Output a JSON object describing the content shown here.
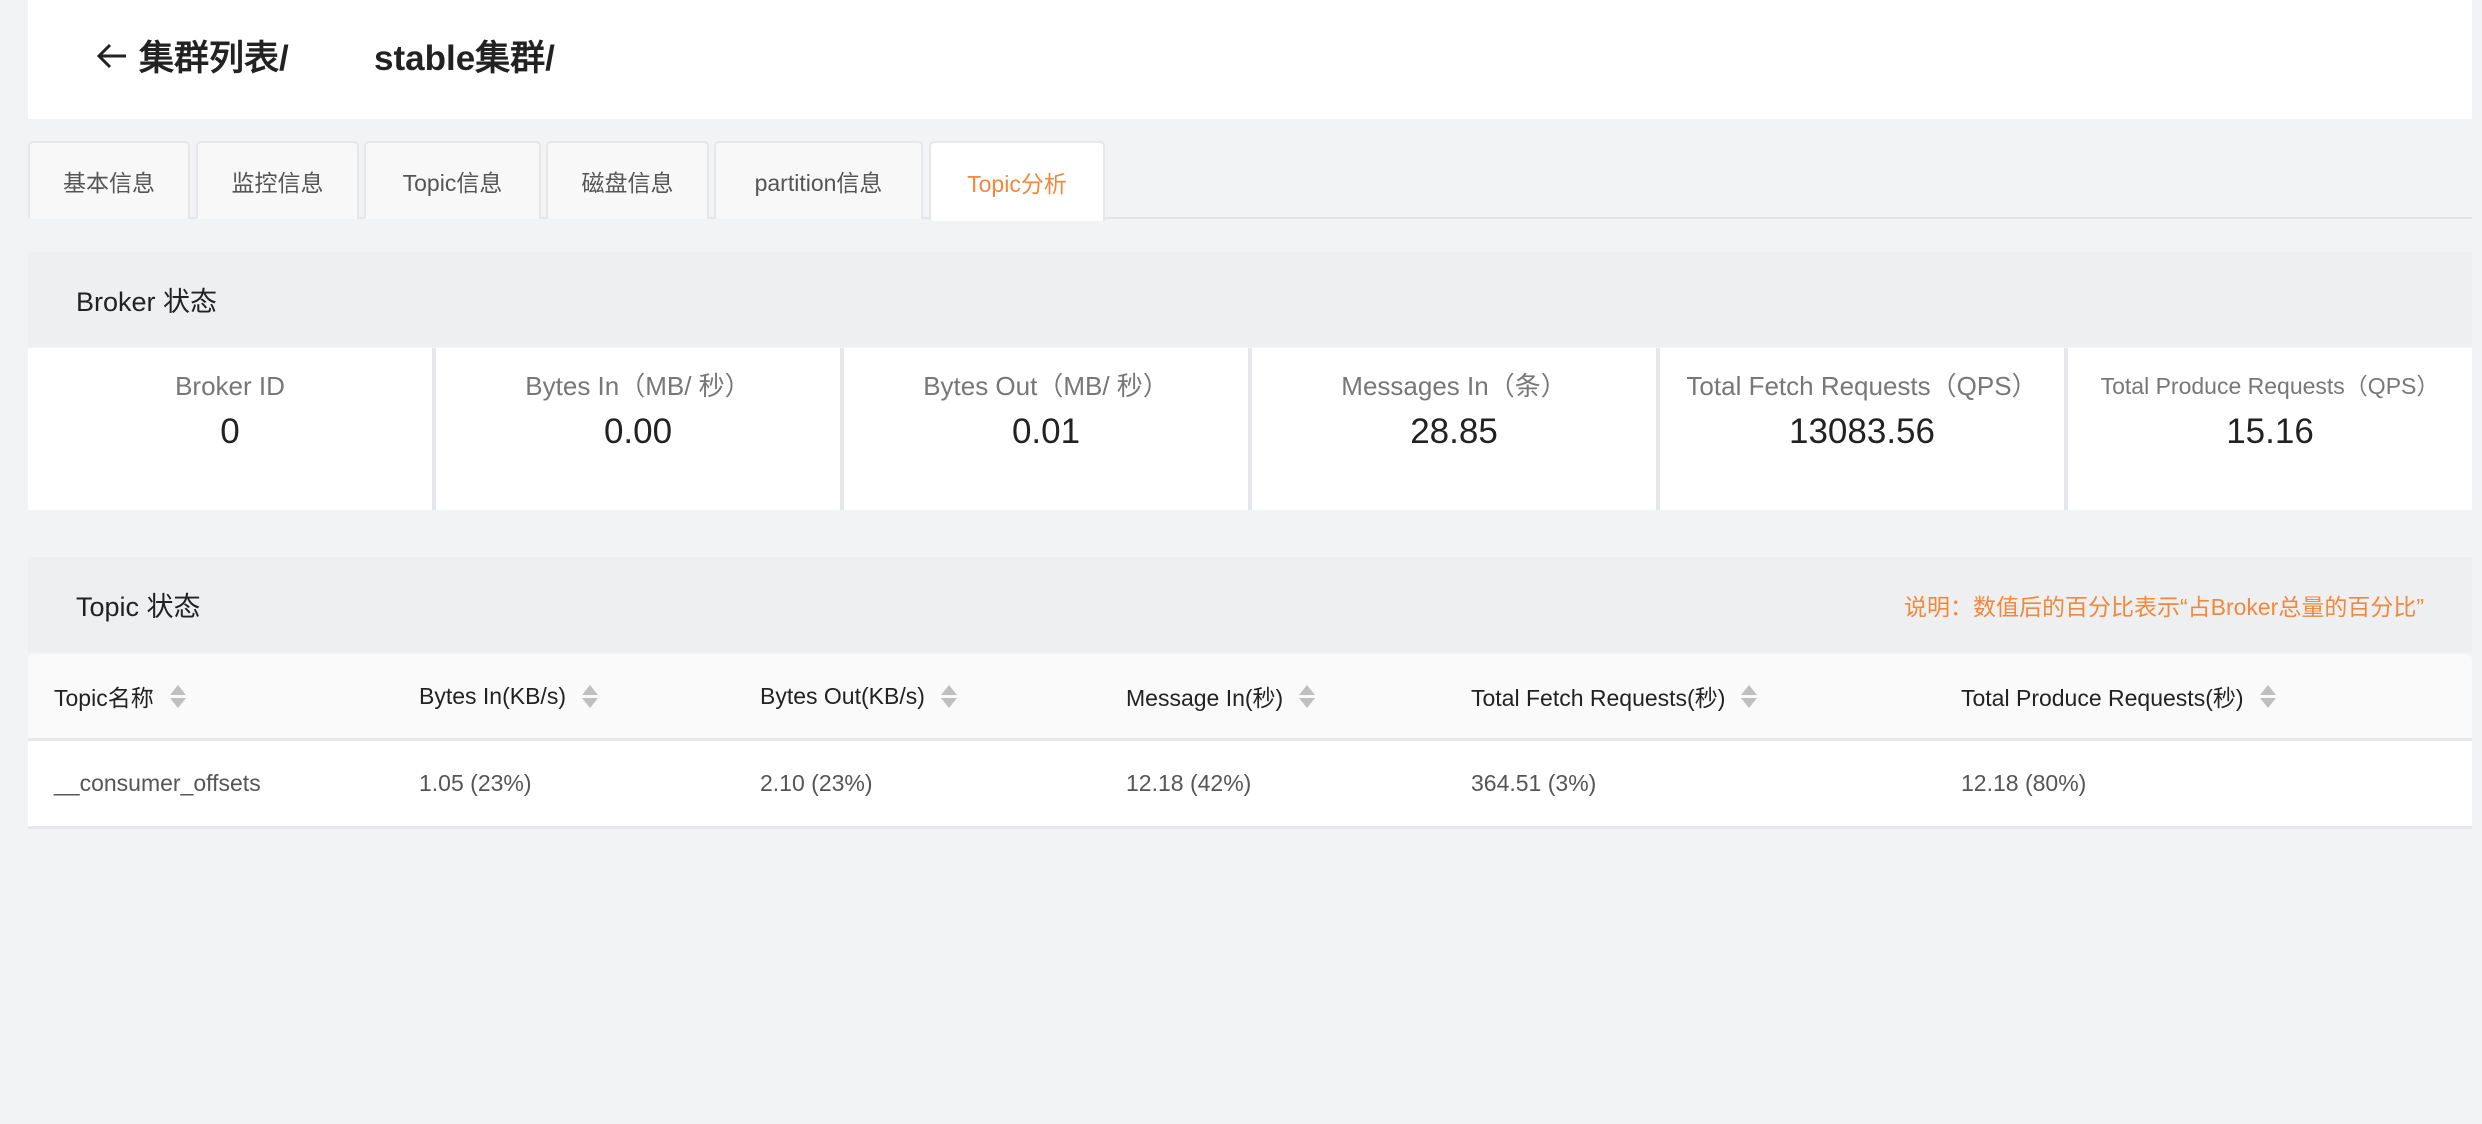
{
  "header": {
    "crumb1": "集群列表/",
    "crumb2": "stable集群/"
  },
  "tabs": [
    {
      "label": "基本信息"
    },
    {
      "label": "监控信息"
    },
    {
      "label": "Topic信息"
    },
    {
      "label": "磁盘信息"
    },
    {
      "label": "partition信息"
    },
    {
      "label": "Topic分析",
      "active": true
    }
  ],
  "broker": {
    "title": "Broker 状态",
    "cells": [
      {
        "label": "Broker ID",
        "value": "0"
      },
      {
        "label": "Bytes In（MB/ 秒）",
        "value": "0.00"
      },
      {
        "label": "Bytes Out（MB/ 秒）",
        "value": "0.01"
      },
      {
        "label": "Messages In（条）",
        "value": "28.85"
      },
      {
        "label": "Total Fetch Requests（QPS）",
        "value": "13083.56"
      },
      {
        "label": "Total Produce Requests（QPS）",
        "value": "15.16"
      }
    ]
  },
  "topic": {
    "title": "Topic 状态",
    "note": "说明：数值后的百分比表示“占Broker总量的百分比”",
    "columns": [
      "Topic名称",
      "Bytes In(KB/s)",
      "Bytes Out(KB/s)",
      "Message In(秒)",
      "Total Fetch Requests(秒)",
      "Total Produce Requests(秒)"
    ],
    "rows": [
      [
        "__consumer_offsets",
        "1.05 (23%)",
        "2.10 (23%)",
        "12.18 (42%)",
        "364.51 (3%)",
        "12.18 (80%)"
      ]
    ]
  },
  "colors": {
    "accent": "#f0883d",
    "background": "#f2f3f5"
  }
}
